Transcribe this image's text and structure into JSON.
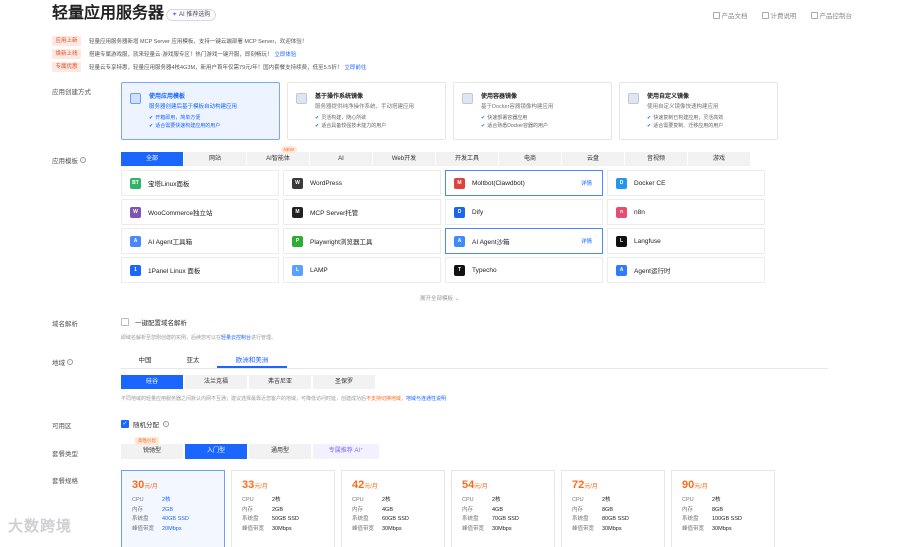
{
  "header": {
    "title": "轻量应用服务器",
    "ai_badge": "AI 推荐选购",
    "links": [
      "产品文档",
      "计费说明",
      "产品控制台"
    ]
  },
  "notices": [
    {
      "tag": "应用上新",
      "text": "轻量应用服务器新增 MCP Server 应用模板，支持一键云端部署 MCP Server，欢迎体验！",
      "link": ""
    },
    {
      "tag": "焕新上线",
      "text": "搭建专属游戏服，就来轻量云·游戏服专区！热门游戏一键开服，即刻畅玩！",
      "link": "立即体验"
    },
    {
      "tag": "专属优惠",
      "text": "轻量云专享特惠，轻量应用服务器4核4G3M，新用户首年仅需79元/年！国内套餐支持续费，低至5.5折！",
      "link": "立即前往"
    }
  ],
  "labels": {
    "method": "应用创建方式",
    "template": "应用模板",
    "domain": "域名解析",
    "region": "地域",
    "zone": "可用区",
    "package_type": "套餐类型",
    "package_spec": "套餐规格"
  },
  "methods": [
    {
      "title": "使用应用模板",
      "sub": "服务器创建后基于模板自动构建应用",
      "b1": "开箱即用，简单方便",
      "b2": "适合需要快速构建应用的用户"
    },
    {
      "title": "基于操作系统镜像",
      "sub": "服务器提供纯净操作系统，手动搭建应用",
      "b1": "灵活构建，随心所欲",
      "b2": "适合具备较强技术能力的用户"
    },
    {
      "title": "使用容器镜像",
      "sub": "基于Docker容器镜像构建应用",
      "b1": "快速部署容器应用",
      "b2": "适合熟悉Docker容器的用户"
    },
    {
      "title": "使用自定义镜像",
      "sub": "使用自定义镜像快速构建应用",
      "b1": "快速复制已构建应用，灵活高效",
      "b2": "适合需要复制、迁移应用的用户"
    }
  ],
  "template_tabs": [
    "全部",
    "网站",
    "AI智能体",
    "AI",
    "Web开发",
    "开发工具",
    "电商",
    "云盘",
    "音视频",
    "游戏"
  ],
  "new_badge": "NEW",
  "apps": [
    {
      "name": "宝塔Linux面板",
      "icon": "bt-panel-icon",
      "color": "#2fb36a",
      "glyph": "BT"
    },
    {
      "name": "WordPress",
      "icon": "wordpress-icon",
      "color": "#3a3a3a",
      "glyph": "W"
    },
    {
      "name": "Moltbot(Clawdbot)",
      "icon": "moltbot-icon",
      "color": "#e0413a",
      "glyph": "M",
      "detail": "详情"
    },
    {
      "name": "Docker CE",
      "icon": "docker-icon",
      "color": "#2496ed",
      "glyph": "D"
    },
    {
      "name": "WooCommerce独立站",
      "icon": "woocommerce-icon",
      "color": "#7f54b3",
      "glyph": "W"
    },
    {
      "name": "MCP Server托管",
      "icon": "mcp-icon",
      "color": "#222222",
      "glyph": "M"
    },
    {
      "name": "Dify",
      "icon": "dify-icon",
      "color": "#1c64f2",
      "glyph": "D"
    },
    {
      "name": "n8n",
      "icon": "n8n-icon",
      "color": "#ea4b71",
      "glyph": "n"
    },
    {
      "name": "AI Agent工具箱",
      "icon": "ai-agent-toolbox-icon",
      "color": "#4a86ff",
      "glyph": "A"
    },
    {
      "name": "Playwright浏览器工具",
      "icon": "playwright-icon",
      "color": "#2ead33",
      "glyph": "P"
    },
    {
      "name": "AI Agent沙箱",
      "icon": "ai-agent-sandbox-icon",
      "color": "#3d8bff",
      "glyph": "A",
      "detail": "详情"
    },
    {
      "name": "Langfuse",
      "icon": "langfuse-icon",
      "color": "#111111",
      "glyph": "L"
    },
    {
      "name": "1Panel Linux 面板",
      "icon": "1panel-icon",
      "color": "#1a66ff",
      "glyph": "1"
    },
    {
      "name": "LAMP",
      "icon": "lamp-icon",
      "color": "#5aa0ff",
      "glyph": "L"
    },
    {
      "name": "Typecho",
      "icon": "typecho-icon",
      "color": "#111111",
      "glyph": "T"
    },
    {
      "name": "Agent运行时",
      "icon": "agent-runtime-icon",
      "color": "#2f7bff",
      "glyph": "A"
    }
  ],
  "expand_all": "展开全部模板 ⌄",
  "domain": {
    "checkbox_label": "一键配置域名解析",
    "tip": "即域名解析至您刚创建的实例，后续您可以在",
    "tip_link": "轻量云控制台",
    "tip_end": "进行管理。"
  },
  "region_tabs": [
    "中国",
    "亚太",
    "欧洲和美洲"
  ],
  "cities": [
    "硅谷",
    "法兰克福",
    "弗吉尼亚",
    "圣保罗"
  ],
  "region_tip": {
    "text": "不同地域的轻量应用服务器之间默认内网不互通；建议选择最靠近您客户的地域，可降低访问时延，创建成功后",
    "warn": "不支持切换地域",
    "link": "地域与连通性说明"
  },
  "zone": {
    "label": "随机分配"
  },
  "package_tabs": [
    "锐驰型",
    "入门型",
    "通用型",
    "专属推荐 AI⁺"
  ],
  "cost_badge": "高性价比",
  "plans": [
    {
      "price": "30",
      "unit": "元/月",
      "cpu": "2核",
      "mem": "2GB",
      "disk": "40GB SSD",
      "bw": "20Mbps"
    },
    {
      "price": "33",
      "unit": "元/月",
      "cpu": "2核",
      "mem": "2GB",
      "disk": "50GB SSD",
      "bw": "30Mbps"
    },
    {
      "price": "42",
      "unit": "元/月",
      "cpu": "2核",
      "mem": "4GB",
      "disk": "60GB SSD",
      "bw": "30Mbps"
    },
    {
      "price": "54",
      "unit": "元/月",
      "cpu": "2核",
      "mem": "4GB",
      "disk": "70GB SSD",
      "bw": "30Mbps"
    },
    {
      "price": "72",
      "unit": "元/月",
      "cpu": "2核",
      "mem": "8GB",
      "disk": "80GB SSD",
      "bw": "30Mbps"
    },
    {
      "price": "90",
      "unit": "元/月",
      "cpu": "2核",
      "mem": "8GB",
      "disk": "100GB SSD",
      "bw": "30Mbps"
    }
  ],
  "spec_keys": {
    "cpu": "CPU",
    "mem": "内存",
    "disk": "系统盘",
    "bw": "峰值带宽"
  },
  "watermark": "大数跨境"
}
